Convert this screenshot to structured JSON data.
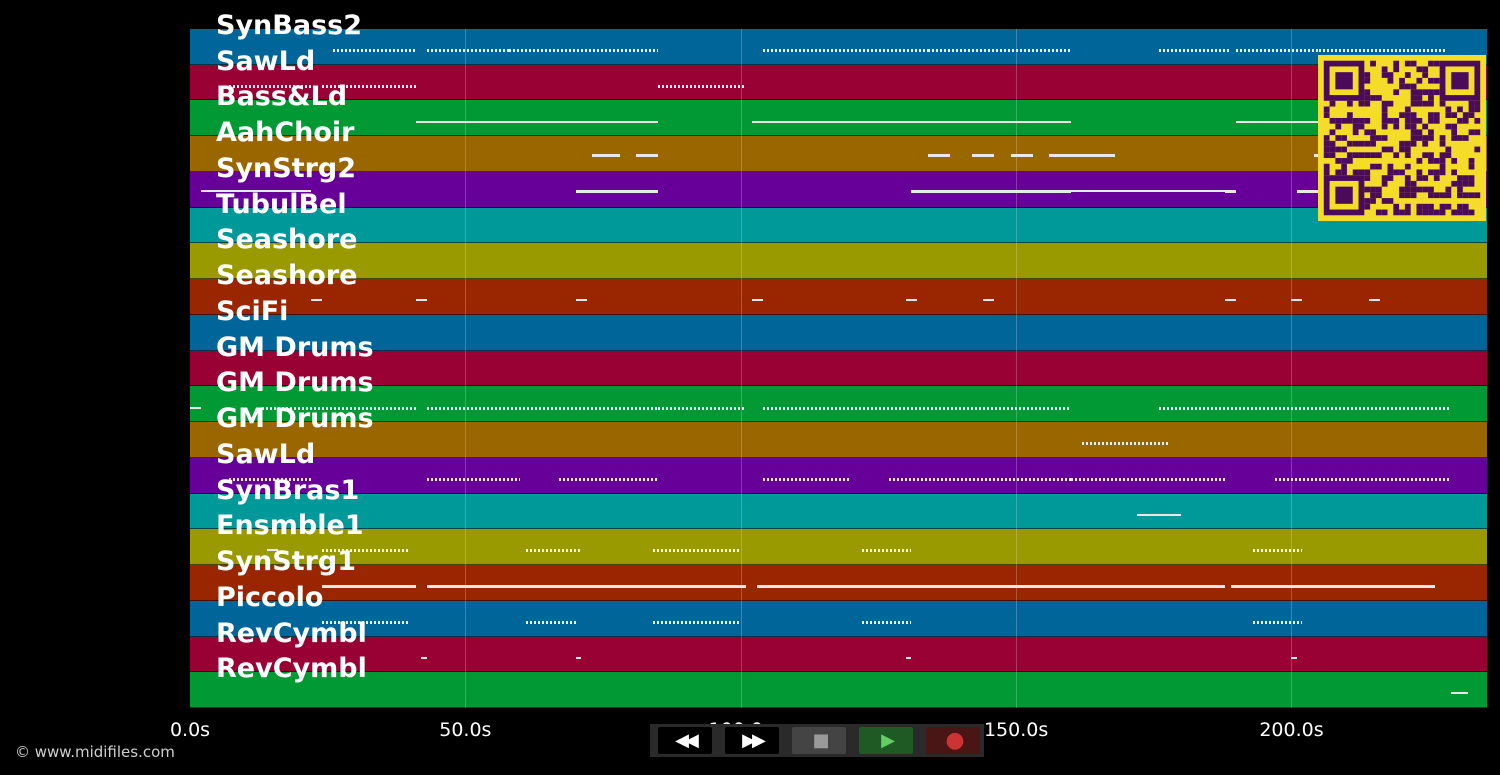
{
  "tracks": [
    {
      "name": "SynBass2",
      "color": "#006699"
    },
    {
      "name": "SawLd",
      "color": "#990033"
    },
    {
      "name": "Bass&Ld",
      "color": "#009933"
    },
    {
      "name": "AahChoir",
      "color": "#996600"
    },
    {
      "name": "SynStrg2",
      "color": "#660099"
    },
    {
      "name": "TubulBel",
      "color": "#009999"
    },
    {
      "name": "Seashore",
      "color": "#999900"
    },
    {
      "name": "Seashore",
      "color": "#992600"
    },
    {
      "name": "SciFi",
      "color": "#006699"
    },
    {
      "name": "GM Drums",
      "color": "#990033"
    },
    {
      "name": "GM Drums",
      "color": "#009933"
    },
    {
      "name": "GM Drums",
      "color": "#996600"
    },
    {
      "name": "SawLd",
      "color": "#660099"
    },
    {
      "name": "SynBras1",
      "color": "#009999"
    },
    {
      "name": "Ensmble1",
      "color": "#999900"
    },
    {
      "name": "SynStrg1",
      "color": "#992600"
    },
    {
      "name": "Piccolo",
      "color": "#006699"
    },
    {
      "name": "RevCymbl",
      "color": "#990033"
    },
    {
      "name": "RevCymbl",
      "color": "#009933"
    }
  ],
  "axis": {
    "unit": "s",
    "max_seconds": 235.5,
    "ticks": [
      {
        "value": 0,
        "label": "0.0s"
      },
      {
        "value": 50,
        "label": "50.0s"
      },
      {
        "value": 100,
        "label": "100.0s"
      },
      {
        "value": 150,
        "label": "150.0s"
      },
      {
        "value": 200,
        "label": "200.0s"
      }
    ]
  },
  "notes": [
    {
      "lane": 0,
      "segments": [
        [
          26,
          41,
          "dotted"
        ],
        [
          43,
          58,
          "dotted"
        ],
        [
          58,
          68,
          "dotted"
        ],
        [
          68,
          85,
          "dotted"
        ],
        [
          104,
          115,
          "dotted"
        ],
        [
          115,
          134,
          "dotted"
        ],
        [
          134,
          160,
          "dotted"
        ],
        [
          176,
          189,
          "dotted"
        ],
        [
          190,
          205,
          "dotted"
        ],
        [
          205,
          228,
          "dotted"
        ]
      ]
    },
    {
      "lane": 1,
      "segments": [
        [
          7,
          22,
          "dotted"
        ],
        [
          24,
          41,
          "dotted"
        ],
        [
          85,
          101,
          "dotted"
        ]
      ]
    },
    {
      "lane": 2,
      "segments": [
        [
          41,
          58,
          "thin"
        ],
        [
          58,
          70,
          "thin"
        ],
        [
          70,
          85,
          "thin"
        ],
        [
          102,
          116,
          "thin"
        ],
        [
          116,
          131,
          "thin"
        ],
        [
          131,
          160,
          "thin"
        ],
        [
          190,
          205,
          "thin"
        ]
      ]
    },
    {
      "lane": 3,
      "segments": [
        [
          73,
          78
        ],
        [
          81,
          85
        ],
        [
          134,
          138
        ],
        [
          142,
          146
        ],
        [
          149,
          153
        ],
        [
          156,
          168
        ],
        [
          204,
          206
        ]
      ]
    },
    {
      "lane": 4,
      "segments": [
        [
          2,
          22,
          "thin"
        ],
        [
          70,
          85
        ],
        [
          131,
          160
        ],
        [
          160,
          188,
          "thin"
        ],
        [
          188,
          190
        ],
        [
          201,
          205
        ]
      ]
    },
    {
      "lane": 7,
      "segments": [
        [
          22,
          24,
          "thin"
        ],
        [
          41,
          43,
          "thin"
        ],
        [
          70,
          72,
          "thin"
        ],
        [
          102,
          104,
          "thin"
        ],
        [
          130,
          132,
          "thin"
        ],
        [
          144,
          146,
          "thin"
        ],
        [
          188,
          190,
          "thin"
        ],
        [
          200,
          202,
          "thin"
        ],
        [
          214,
          216,
          "thin"
        ]
      ]
    },
    {
      "lane": 10,
      "segments": [
        [
          0,
          2,
          "thin"
        ],
        [
          13,
          41,
          "dotted"
        ],
        [
          43,
          85,
          "dotted"
        ],
        [
          85,
          101,
          "dotted"
        ],
        [
          104,
          160,
          "dotted"
        ],
        [
          176,
          205,
          "dotted"
        ],
        [
          205,
          229,
          "dotted"
        ]
      ]
    },
    {
      "lane": 11,
      "segments": [
        [
          162,
          178,
          "dotted"
        ]
      ]
    },
    {
      "lane": 12,
      "segments": [
        [
          7,
          22,
          "dotted"
        ],
        [
          43,
          60,
          "dotted"
        ],
        [
          67,
          85,
          "dotted"
        ],
        [
          104,
          120,
          "dotted"
        ],
        [
          127,
          160,
          "dotted"
        ],
        [
          160,
          188,
          "dotted"
        ],
        [
          197,
          229,
          "dotted"
        ]
      ]
    },
    {
      "lane": 13,
      "segments": [
        [
          172,
          180,
          "thin"
        ]
      ]
    },
    {
      "lane": 14,
      "segments": [
        [
          14,
          16,
          "thin"
        ],
        [
          24,
          40,
          "dotted"
        ],
        [
          61,
          71,
          "dotted"
        ],
        [
          84,
          100,
          "dotted"
        ],
        [
          122,
          131,
          "dotted"
        ],
        [
          193,
          202,
          "dotted"
        ]
      ]
    },
    {
      "lane": 15,
      "segments": [
        [
          24,
          41
        ],
        [
          43,
          60
        ],
        [
          60,
          85
        ],
        [
          85,
          101
        ],
        [
          103,
          160
        ],
        [
          160,
          188
        ],
        [
          189,
          226
        ]
      ]
    },
    {
      "lane": 16,
      "segments": [
        [
          24,
          40,
          "dotted"
        ],
        [
          61,
          70,
          "dotted"
        ],
        [
          84,
          100,
          "dotted"
        ],
        [
          122,
          131,
          "dotted"
        ],
        [
          193,
          202,
          "dotted"
        ]
      ]
    },
    {
      "lane": 17,
      "segments": [
        [
          42,
          43,
          "thin"
        ],
        [
          70,
          71,
          "thin"
        ],
        [
          130,
          131,
          "thin"
        ],
        [
          200,
          201,
          "thin"
        ]
      ]
    },
    {
      "lane": 18,
      "segments": [
        [
          229,
          232,
          "thin"
        ]
      ]
    }
  ],
  "copyright": "© www.midifiles.com",
  "transport": {
    "buttons": [
      {
        "name": "rewind-button",
        "glyph": "◀◀",
        "bg": "#000000",
        "color": "#ffffff"
      },
      {
        "name": "fast-forward-button",
        "glyph": "▶▶",
        "bg": "#000000",
        "color": "#ffffff"
      },
      {
        "name": "stop-button",
        "glyph": "■",
        "bg": "#444444",
        "color": "#9a9a9a"
      },
      {
        "name": "play-button",
        "glyph": "▶",
        "bg": "#1f5a25",
        "color": "#66cc66"
      },
      {
        "name": "record-button",
        "glyph": "●",
        "bg": "#4a1515",
        "color": "#cc3333"
      }
    ]
  },
  "colors": {
    "background": "#000000",
    "qr_bg": "#f5dc2a",
    "qr_fg": "#4b0b5a"
  }
}
